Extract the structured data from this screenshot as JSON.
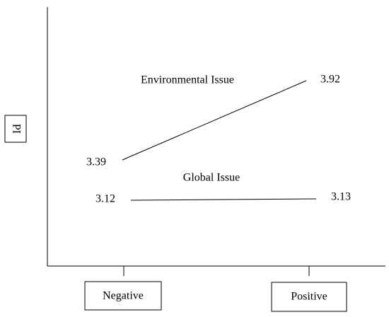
{
  "chart_data": {
    "type": "line",
    "title": "",
    "xlabel": "",
    "ylabel": "PI",
    "categories": [
      "Negative",
      "Positive"
    ],
    "series": [
      {
        "name": "Environmental Issue",
        "values": [
          3.39,
          3.92
        ]
      },
      {
        "name": "Global Issue",
        "values": [
          3.12,
          3.13
        ]
      }
    ],
    "data_labels": [
      [
        "3.39",
        "3.92"
      ],
      [
        "3.12",
        "3.13"
      ]
    ],
    "grid": false,
    "legend": "none",
    "colors": {
      "line": "#000000",
      "axis": "#000000",
      "text": "#000000"
    }
  }
}
